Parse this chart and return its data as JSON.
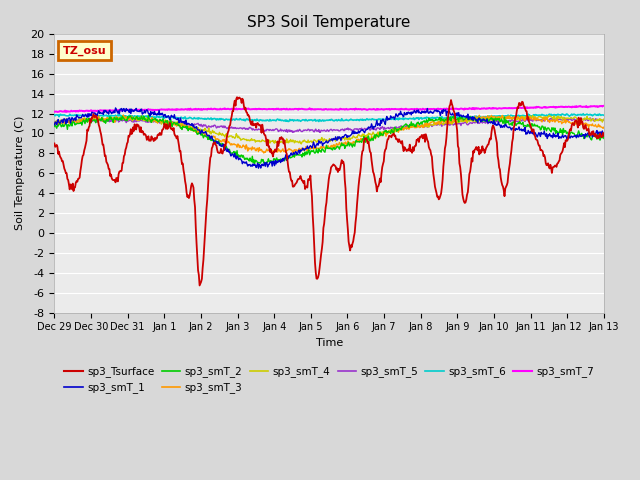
{
  "title": "SP3 Soil Temperature",
  "xlabel": "Time",
  "ylabel": "Soil Temperature (C)",
  "ylim": [
    -8,
    20
  ],
  "xlim": [
    0,
    15
  ],
  "fig_bg_color": "#d8d8d8",
  "plot_bg_color": "#ebebeb",
  "grid_color": "#ffffff",
  "tz_label": "TZ_osu",
  "tz_label_color": "#cc0000",
  "tz_bg_color": "#ffffcc",
  "tz_border_color": "#cc6600",
  "series_colors": {
    "sp3_Tsurface": "#cc0000",
    "sp3_smT_1": "#0000cc",
    "sp3_smT_2": "#00cc00",
    "sp3_smT_3": "#ff9900",
    "sp3_smT_4": "#cccc00",
    "sp3_smT_5": "#9933cc",
    "sp3_smT_6": "#00cccc",
    "sp3_smT_7": "#ff00ff"
  },
  "xtick_labels": [
    "Dec 29",
    "Dec 30",
    "Dec 31",
    "Jan 1",
    "Jan 2",
    "Jan 3",
    "Jan 4",
    "Jan 5",
    "Jan 6",
    "Jan 7",
    "Jan 8",
    "Jan 9",
    "Jan 10",
    "Jan 11",
    "Jan 12",
    "Jan 13"
  ],
  "xtick_positions": [
    0,
    1,
    2,
    3,
    4,
    5,
    6,
    7,
    8,
    9,
    10,
    11,
    12,
    13,
    14,
    15
  ],
  "ytick_labels": [
    "-8",
    "-6",
    "-4",
    "-2",
    "0",
    "2",
    "4",
    "6",
    "8",
    "10",
    "12",
    "14",
    "16",
    "18",
    "20"
  ],
  "ytick_positions": [
    -8,
    -6,
    -4,
    -2,
    0,
    2,
    4,
    6,
    8,
    10,
    12,
    14,
    16,
    18,
    20
  ]
}
